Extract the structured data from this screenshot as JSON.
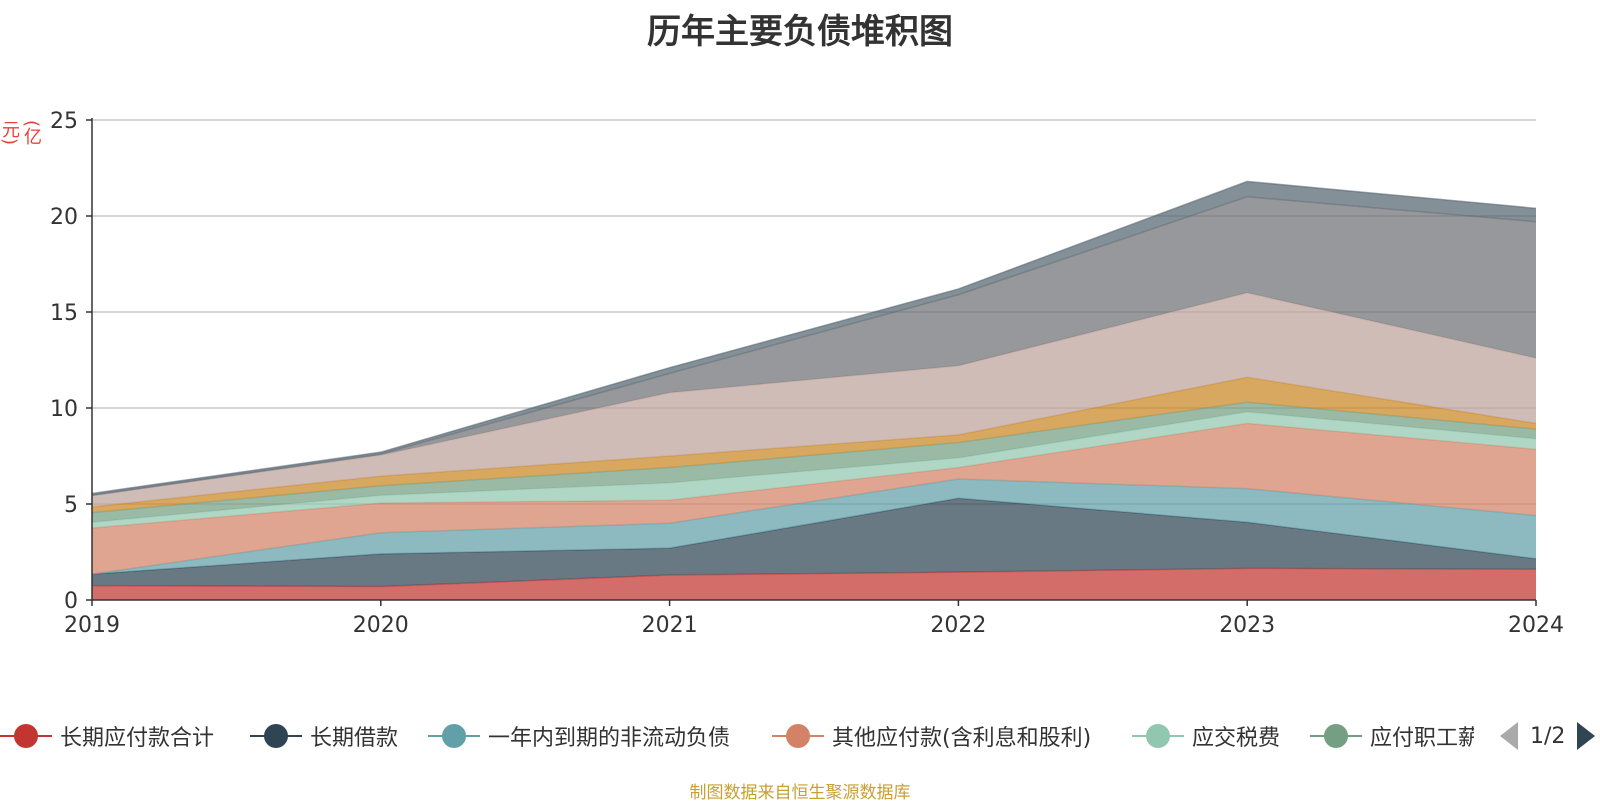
{
  "chart_data": {
    "type": "area",
    "stacked": true,
    "title": "历年主要负债堆积图",
    "ylabel": "(亿元)",
    "x": [
      "2019",
      "2020",
      "2021",
      "2022",
      "2023",
      "2024"
    ],
    "ylim": [
      0,
      25
    ],
    "yticks": [
      "0",
      "5",
      "10",
      "15",
      "20",
      "25"
    ],
    "grid": true,
    "legend_position": "bottom",
    "series": [
      {
        "name": "长期应付款合计",
        "color": "#c23531",
        "values": [
          0.75,
          0.7,
          1.3,
          1.45,
          1.65,
          1.6
        ]
      },
      {
        "name": "长期借款",
        "color": "#2f4554",
        "values": [
          0.6,
          1.7,
          1.4,
          3.85,
          2.4,
          0.55
        ]
      },
      {
        "name": "一年内到期的非流动负债",
        "color": "#61a0a8",
        "values": [
          0.0,
          1.1,
          1.3,
          1.0,
          1.75,
          2.25
        ]
      },
      {
        "name": "其他应付款(含利息和股利)",
        "color": "#d48265",
        "values": [
          2.4,
          1.55,
          1.2,
          0.6,
          3.4,
          3.45
        ]
      },
      {
        "name": "应交税费",
        "color": "#91c7ae",
        "values": [
          0.3,
          0.4,
          0.9,
          0.5,
          0.6,
          0.55
        ]
      },
      {
        "name": "应付职工薪酬",
        "color": "#749f83",
        "values": [
          0.5,
          0.5,
          0.8,
          0.8,
          0.5,
          0.5
        ]
      },
      {
        "name": "",
        "color": "#ca8622",
        "values": [
          0.3,
          0.5,
          0.6,
          0.4,
          1.3,
          0.3
        ]
      },
      {
        "name": "",
        "color": "#bda29a",
        "values": [
          0.6,
          1.1,
          3.3,
          3.6,
          4.4,
          3.4
        ]
      },
      {
        "name": "",
        "color": "#6e7074",
        "values": [
          0.0,
          0.05,
          1.0,
          3.7,
          5.0,
          7.1
        ]
      },
      {
        "name": "",
        "color": "#546570",
        "values": [
          0.1,
          0.1,
          0.3,
          0.3,
          0.8,
          0.7
        ]
      }
    ]
  },
  "legend": {
    "items": [
      {
        "label": "长期应付款合计",
        "color": "#c23531"
      },
      {
        "label": "长期借款",
        "color": "#2f4554"
      },
      {
        "label": "一年内到期的非流动负债",
        "color": "#61a0a8"
      },
      {
        "label": "其他应付款(含利息和股利)",
        "color": "#d48265"
      },
      {
        "label": "应交税费",
        "color": "#91c7ae"
      },
      {
        "label": "应付职工薪酬",
        "color": "#749f83"
      }
    ],
    "page_indicator": "1/2"
  },
  "source_note": "制图数据来自恒生聚源数据库"
}
